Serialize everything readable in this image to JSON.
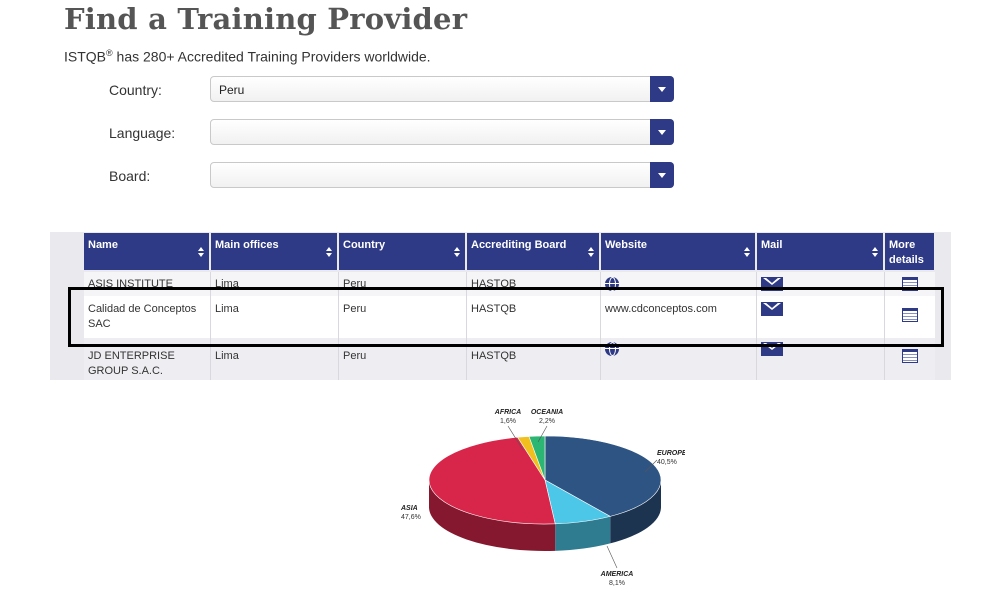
{
  "page": {
    "title": "Find a Training Provider",
    "subtitle_pre": "ISTQB",
    "subtitle_sup": "®",
    "subtitle_post": " has 280+ Accredited Training Providers worldwide."
  },
  "filters": {
    "country": {
      "label": "Country:",
      "value": "Peru"
    },
    "language": {
      "label": "Language:",
      "value": ""
    },
    "board": {
      "label": "Board:",
      "value": ""
    }
  },
  "table": {
    "columns": [
      "Name",
      "Main offices",
      "Country",
      "Accrediting Board",
      "Website",
      "Mail",
      "More details"
    ],
    "rows": [
      {
        "name": "ASIS INSTITUTE",
        "office": "Lima",
        "country": "Peru",
        "board": "HASTQB",
        "website": "",
        "website_icon": "globe-icon"
      },
      {
        "name": "Calidad de Conceptos SAC",
        "office": "Lima",
        "country": "Peru",
        "board": "HASTQB",
        "website": "www.cdconceptos.com",
        "website_icon": ""
      },
      {
        "name": "JD ENTERPRISE GROUP S.A.C.",
        "office": "Lima",
        "country": "Peru",
        "board": "HASTQB",
        "website": "",
        "website_icon": "globe-icon"
      }
    ]
  },
  "colors": {
    "header": "#2e3a86",
    "europe": "#2e5483",
    "america": "#4cc7e8",
    "asia": "#d7264a",
    "africa": "#f2c01e",
    "oceania": "#2bb673"
  },
  "chart_data": {
    "type": "pie",
    "title": "",
    "slices": [
      {
        "label": "EUROPE",
        "value": 40.5,
        "display": "40,5%"
      },
      {
        "label": "AMERICA",
        "value": 8.1,
        "display": "8,1%"
      },
      {
        "label": "ASIA",
        "value": 47.6,
        "display": "47,6%"
      },
      {
        "label": "AFRICA",
        "value": 1.6,
        "display": "1,6%"
      },
      {
        "label": "OCEANIA",
        "value": 2.2,
        "display": "2,2%"
      }
    ]
  }
}
